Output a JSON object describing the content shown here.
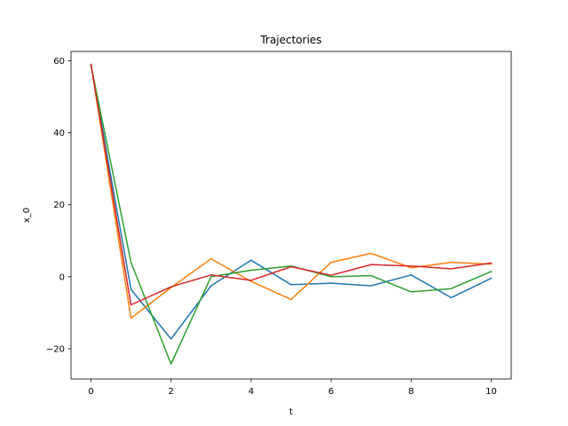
{
  "chart_data": {
    "type": "line",
    "title": "Trajectories",
    "xlabel": "t",
    "ylabel": "x_0",
    "xlim": [
      -0.5,
      10.5
    ],
    "ylim": [
      -28.4,
      62.6
    ],
    "xticks": [
      0,
      2,
      4,
      6,
      8,
      10
    ],
    "yticks": [
      -20,
      0,
      20,
      40,
      60
    ],
    "ytick_labels": [
      "−20",
      "0",
      "20",
      "40",
      "60"
    ],
    "grid": false,
    "x": [
      0,
      1,
      2,
      3,
      4,
      5,
      6,
      7,
      8,
      9,
      10
    ],
    "series": [
      {
        "color": "#1f77b4",
        "values": [
          59,
          -3.5,
          -17.3,
          -2.5,
          4.6,
          -2.2,
          -1.8,
          -2.5,
          0.5,
          -5.8,
          -0.4
        ]
      },
      {
        "color": "#ff7f0e",
        "values": [
          59,
          -11.5,
          -3,
          5,
          -1.3,
          -6.3,
          4,
          6.5,
          2.5,
          4,
          3.5
        ]
      },
      {
        "color": "#2ca02c",
        "values": [
          58.8,
          4,
          -24.2,
          0,
          1.8,
          3,
          0,
          0.3,
          -4.2,
          -3.3,
          1.5
        ]
      },
      {
        "color": "#d62728",
        "values": [
          59,
          -7.8,
          -2.8,
          0.5,
          -1,
          2.8,
          0.4,
          3.4,
          3,
          2.2,
          3.8
        ]
      }
    ]
  }
}
